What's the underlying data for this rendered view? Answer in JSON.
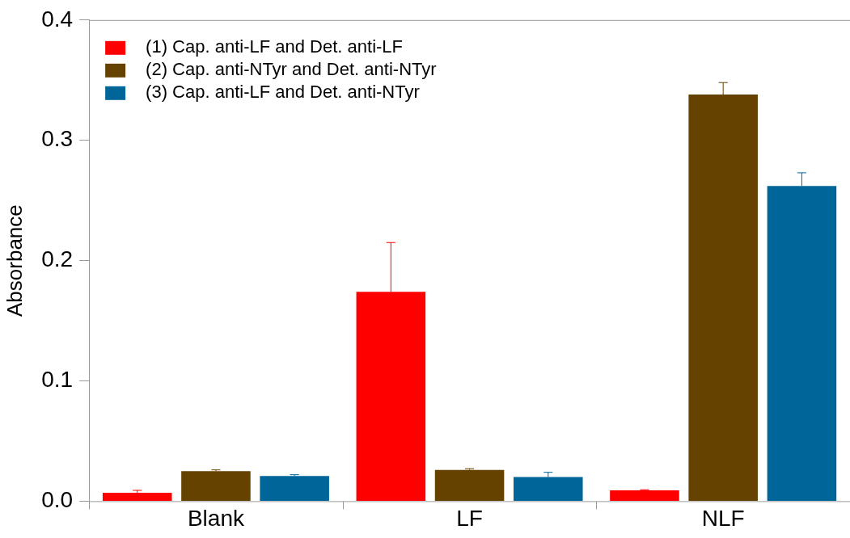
{
  "chart_data": {
    "type": "bar",
    "ylabel": "Absorbance",
    "categories": [
      "Blank",
      "LF",
      "NLF"
    ],
    "series": [
      {
        "name": "(1) Cap. anti-LF and Det. anti-LF",
        "color": "#ff0000",
        "values": [
          0.007,
          0.174,
          0.009
        ],
        "errors": [
          [
            0.007,
            0.009
          ],
          [
            0.174,
            0.215
          ],
          [
            0.009,
            0.0095
          ]
        ]
      },
      {
        "name": "(2) Cap. anti-NTyr and Det. anti-NTyr",
        "color": "#654200",
        "values": [
          0.025,
          0.026,
          0.338
        ],
        "errors": [
          [
            0.025,
            0.026
          ],
          [
            0.026,
            0.027
          ],
          [
            0.338,
            0.348
          ]
        ]
      },
      {
        "name": "(3) Cap. anti-LF and Det. anti-NTyr",
        "color": "#006699",
        "values": [
          0.021,
          0.02,
          0.262
        ],
        "errors": [
          [
            0.021,
            0.022
          ],
          [
            0.02,
            0.024
          ],
          [
            0.262,
            0.273
          ]
        ]
      }
    ],
    "ylim": [
      0,
      0.4
    ],
    "yticks": [
      {
        "value": 0,
        "label": "0.0"
      },
      0.1,
      0.2,
      0.3,
      0.4
    ],
    "grid": false,
    "legend": "top left"
  }
}
